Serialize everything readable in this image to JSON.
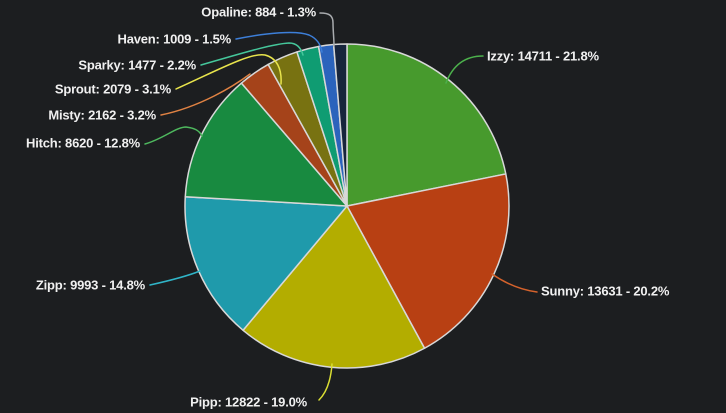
{
  "app": {
    "background_color": "#1c1e20"
  },
  "chart_data": {
    "type": "pie",
    "title": "",
    "legend": "none",
    "direction": "clockwise",
    "start_angle_deg": 0,
    "total": 67388,
    "stroke_color": "#d8d8d8",
    "label_text_color": "#f0f0f0",
    "categories": [
      "Izzy",
      "Sunny",
      "Pipp",
      "Zipp",
      "Hitch",
      "Misty",
      "Sprout",
      "Sparky",
      "Haven",
      "Opaline"
    ],
    "values": [
      14711,
      13631,
      12822,
      9993,
      8620,
      2162,
      2079,
      1477,
      1009,
      884
    ],
    "slices": [
      {
        "name": "Izzy",
        "value": 14711,
        "pct": 21.8,
        "label": "Izzy: 14711 - 21.8%",
        "color": "#479a2d",
        "leader_color": "#4cb14c"
      },
      {
        "name": "Sunny",
        "value": 13631,
        "pct": 20.2,
        "label": "Sunny: 13631 - 20.2%",
        "color": "#b84013",
        "leader_color": "#d4622c"
      },
      {
        "name": "Pipp",
        "value": 12822,
        "pct": 19.0,
        "label": "Pipp: 12822 - 19.0%",
        "color": "#b3ad00",
        "leader_color": "#dade33"
      },
      {
        "name": "Zipp",
        "value": 9993,
        "pct": 14.8,
        "label": "Zipp: 9993 - 14.8%",
        "color": "#1f9aab",
        "leader_color": "#30b5c8"
      },
      {
        "name": "Hitch",
        "value": 8620,
        "pct": 12.8,
        "label": "Hitch: 8620 - 12.8%",
        "color": "#188a40",
        "leader_color": "#4eb85e"
      },
      {
        "name": "Misty",
        "value": 2162,
        "pct": 3.2,
        "label": "Misty: 2162 - 3.2%",
        "color": "#a5431a",
        "leader_color": "#e08243"
      },
      {
        "name": "Sprout",
        "value": 2079,
        "pct": 3.1,
        "label": "Sprout: 2079 - 3.1%",
        "color": "#787211",
        "leader_color": "#e8e44c"
      },
      {
        "name": "Sparky",
        "value": 1477,
        "pct": 2.2,
        "label": "Sparky: 1477 - 2.2%",
        "color": "#0f9c72",
        "leader_color": "#45c79b"
      },
      {
        "name": "Haven",
        "value": 1009,
        "pct": 1.5,
        "label": "Haven: 1009 - 1.5%",
        "color": "#2b63bc",
        "leader_color": "#3d7fd9"
      },
      {
        "name": "Opaline",
        "value": 884,
        "pct": 1.3,
        "label": "Opaline: 884 - 1.3%",
        "color": "#17253c",
        "leader_color": "#a8abae"
      }
    ]
  }
}
